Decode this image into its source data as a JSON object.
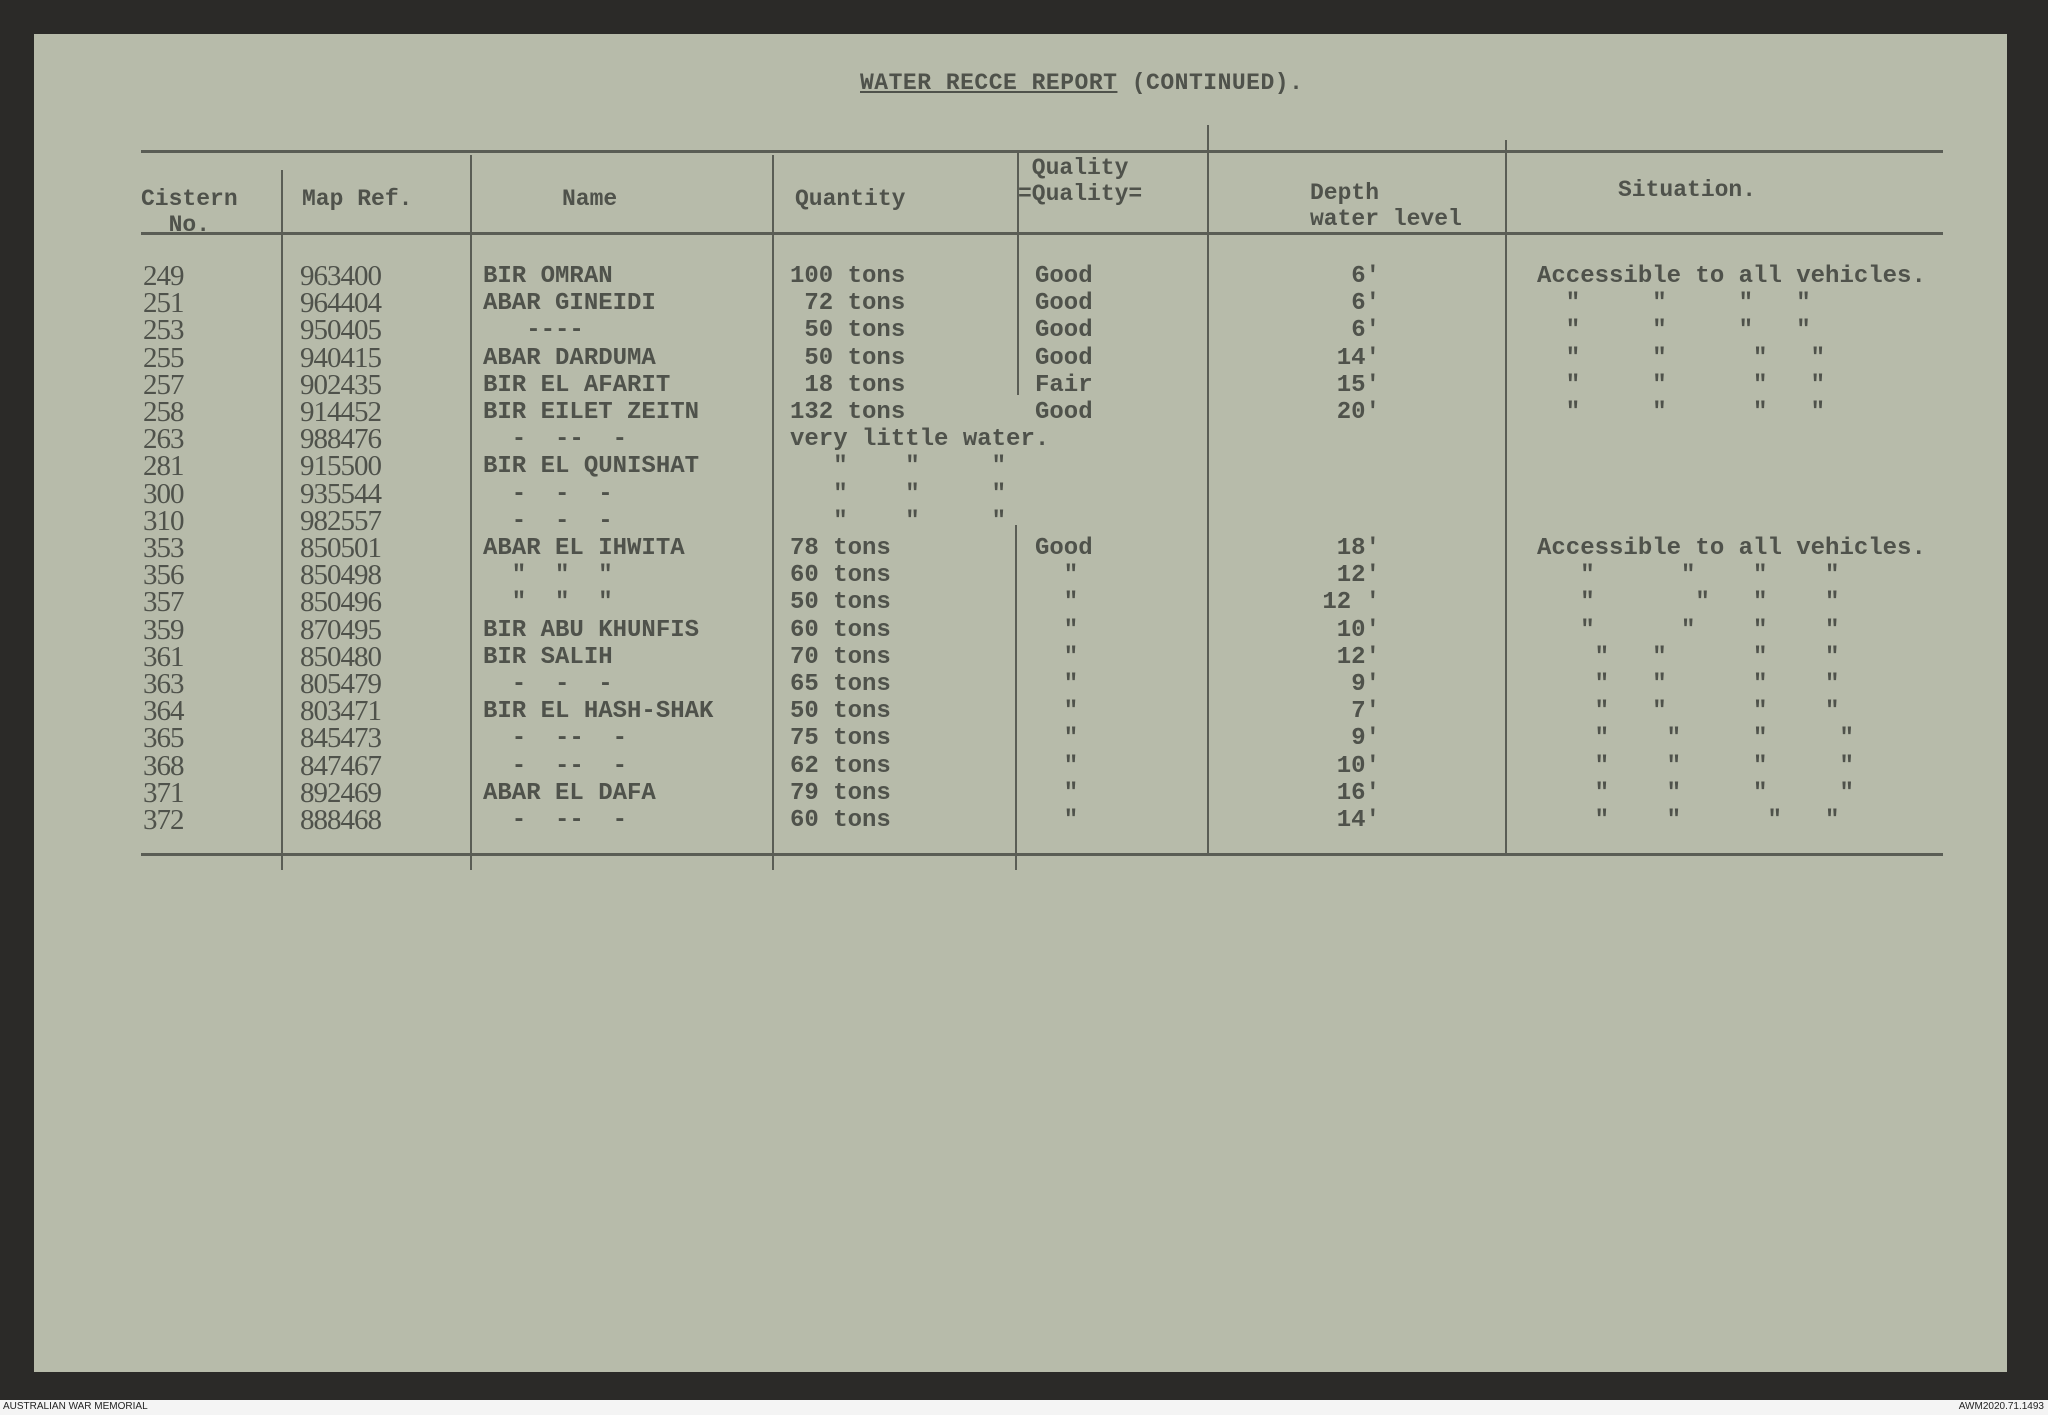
{
  "title": {
    "underlined": "WATER RECCE REPORT",
    "rest": " (CONTINUED)."
  },
  "headers": {
    "cistern": "Cistern\nNo.",
    "map_ref": "Map Ref.",
    "name": "Name",
    "quantity": "Quantity",
    "quality": "Quality\n=Quality=",
    "depth": "Depth\nwater level",
    "situation": "Situation."
  },
  "rows": [
    {
      "cistern": "249",
      "map_ref": "963400",
      "name": "BIR OMRAN",
      "quantity": "100 tons",
      "quality": "Good",
      "depth": "6'",
      "situation": "Accessible to all vehicles."
    },
    {
      "cistern": "251",
      "map_ref": "964404",
      "name": "ABAR GINEIDI",
      "quantity": " 72 tons",
      "quality": "Good",
      "depth": "6'",
      "situation": "  \"     \"     \"   \""
    },
    {
      "cistern": "253",
      "map_ref": "950405",
      "name": "   ----",
      "quantity": " 50 tons",
      "quality": "Good",
      "depth": "6'",
      "situation": "  \"     \"     \"   \""
    },
    {
      "cistern": "255",
      "map_ref": "940415",
      "name": "ABAR DARDUMA",
      "quantity": " 50 tons",
      "quality": "Good",
      "depth": "14'",
      "situation": "  \"     \"      \"   \""
    },
    {
      "cistern": "257",
      "map_ref": "902435",
      "name": "BIR EL AFARIT",
      "quantity": " 18 tons",
      "quality": "Fair",
      "depth": "15'",
      "situation": "  \"     \"      \"   \""
    },
    {
      "cistern": "258",
      "map_ref": "914452",
      "name": "BIR EILET ZEITN",
      "quantity": "132 tons",
      "quality": "Good",
      "depth": "20'",
      "situation": "  \"     \"      \"   \""
    },
    {
      "cistern": "263",
      "map_ref": "988476",
      "name": "  -  --  -",
      "quantity": "very little water.",
      "quality": "",
      "depth": "",
      "situation": ""
    },
    {
      "cistern": "281",
      "map_ref": "915500",
      "name": "BIR EL QUNISHAT",
      "quantity": "   \"    \"     \"",
      "quality": "",
      "depth": "",
      "situation": ""
    },
    {
      "cistern": "300",
      "map_ref": "935544",
      "name": "  -  -  -",
      "quantity": "   \"    \"     \"",
      "quality": "",
      "depth": "",
      "situation": ""
    },
    {
      "cistern": "310",
      "map_ref": "982557",
      "name": "  -  -  -",
      "quantity": "   \"    \"     \"",
      "quality": "",
      "depth": "",
      "situation": ""
    },
    {
      "cistern": "353",
      "map_ref": "850501",
      "name": "ABAR EL IHWITA",
      "quantity": "78 tons",
      "quality": "Good",
      "depth": "18'",
      "situation": "Accessible to all vehicles."
    },
    {
      "cistern": "356",
      "map_ref": "850498",
      "name": "  \"  \"  \"",
      "quantity": "60 tons",
      "quality": "  \"",
      "depth": "12'",
      "situation": "   \"      \"    \"    \""
    },
    {
      "cistern": "357",
      "map_ref": "850496",
      "name": "  \"  \"  \"",
      "quantity": "50 tons",
      "quality": "  \"",
      "depth": "12 '",
      "situation": "   \"       \"   \"    \""
    },
    {
      "cistern": "359",
      "map_ref": "870495",
      "name": "BIR ABU KHUNFIS",
      "quantity": "60 tons",
      "quality": "  \"",
      "depth": "10'",
      "situation": "   \"      \"    \"    \""
    },
    {
      "cistern": "361",
      "map_ref": "850480",
      "name": "BIR SALIH",
      "quantity": "70 tons",
      "quality": "  \"",
      "depth": "12'",
      "situation": "    \"   \"      \"    \""
    },
    {
      "cistern": "363",
      "map_ref": "805479",
      "name": "  -  -  -",
      "quantity": "65 tons",
      "quality": "  \"",
      "depth": "9'",
      "situation": "    \"   \"      \"    \""
    },
    {
      "cistern": "364",
      "map_ref": "803471",
      "name": "BIR EL HASH-SHAK",
      "quantity": "50 tons",
      "quality": "  \"",
      "depth": "7'",
      "situation": "    \"   \"      \"    \""
    },
    {
      "cistern": "365",
      "map_ref": "845473",
      "name": "  -  --  -",
      "quantity": "75 tons",
      "quality": "  \"",
      "depth": "9'",
      "situation": "    \"    \"     \"     \""
    },
    {
      "cistern": "368",
      "map_ref": "847467",
      "name": "  -  --  -",
      "quantity": "62 tons",
      "quality": "  \"",
      "depth": "10'",
      "situation": "    \"    \"     \"     \""
    },
    {
      "cistern": "371",
      "map_ref": "892469",
      "name": "ABAR EL DAFA",
      "quantity": "79 tons",
      "quality": "  \"",
      "depth": "16'",
      "situation": "    \"    \"     \"     \""
    },
    {
      "cistern": "372",
      "map_ref": "888468",
      "name": "  -  --  -",
      "quantity": "60 tons",
      "quality": "  \"",
      "depth": "14'",
      "situation": "    \"    \"      \"   \""
    }
  ],
  "footer": {
    "left": "AUSTRALIAN WAR MEMORIAL",
    "right": "AWM2020.71.1493"
  }
}
